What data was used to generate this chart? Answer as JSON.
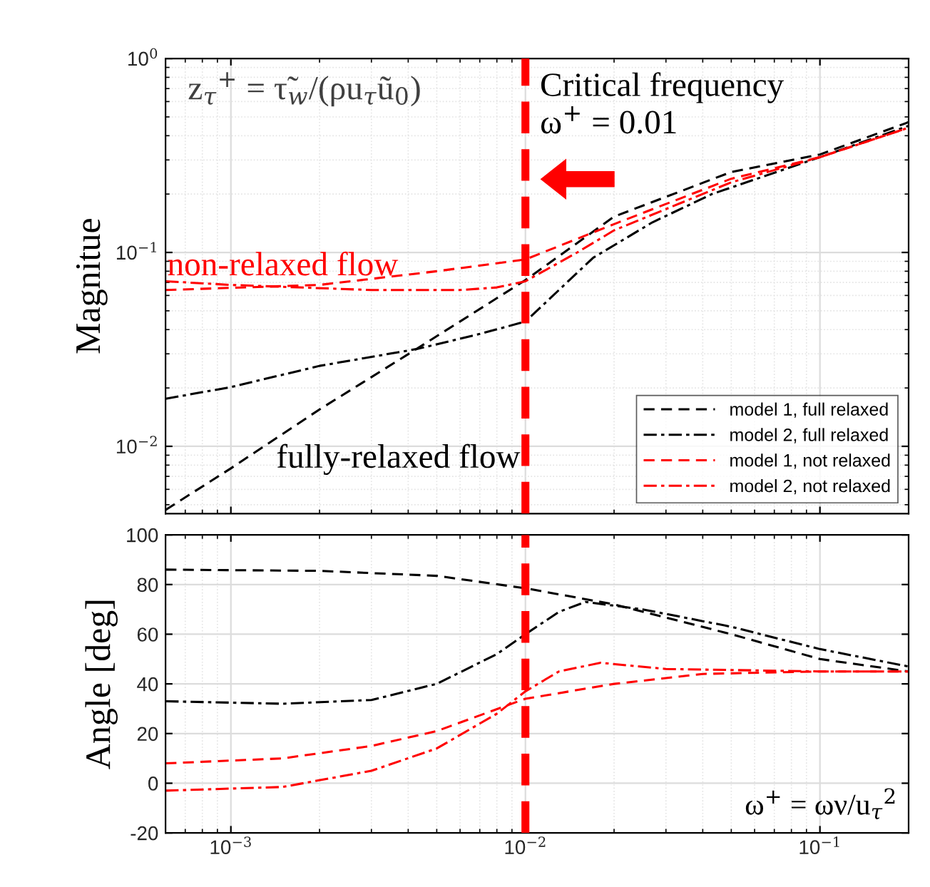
{
  "chart_data": [
    {
      "type": "line",
      "ylabel": "Magnitue",
      "log": "xy",
      "grid": true,
      "legend": "bottom right",
      "tick_labels": "y",
      "xlim": [
        0.0006,
        0.2
      ],
      "ylim": [
        0.0045,
        1
      ],
      "yticks": [
        {
          "value": 0.01,
          "label": "10$^{−2}$"
        },
        {
          "value": 0.1,
          "label": "10$^{−1}$"
        },
        {
          "value": 1,
          "label": "10$^{0}$"
        }
      ],
      "annotations": [
        "z$_{τ}$$^{+}$ = τ̃$_{w}$/(ρu$_{τ}$ũ$_{0}$)",
        {
          "text": "non-relaxed flow",
          "x": 0.0015,
          "y": 0.07
        },
        "fully-relaxed flow"
      ],
      "ref_lines": [
        {
          "axis": "x",
          "value": 0.01,
          "label": "Critical frequency\nω$^{+}$ = 0.01",
          "color": "#ff0000",
          "line_style": "dashed"
        }
      ],
      "series": [
        {
          "name": "model 1, full relaxed",
          "color": "#000000",
          "line_style": "dashed",
          "x": [
            0.0006,
            0.001,
            0.002,
            0.0043,
            0.01,
            0.02,
            0.05,
            0.1,
            0.2
          ],
          "values": [
            0.0047,
            0.0077,
            0.0155,
            0.032,
            0.072,
            0.153,
            0.26,
            0.32,
            0.47
          ]
        },
        {
          "name": "model 2, full relaxed",
          "color": "#000000",
          "line_style": "dashdot",
          "x": [
            0.0006,
            0.001,
            0.002,
            0.0043,
            0.007,
            0.01,
            0.017,
            0.027,
            0.043,
            0.1,
            0.2
          ],
          "values": [
            0.0176,
            0.0202,
            0.026,
            0.0318,
            0.038,
            0.044,
            0.094,
            0.143,
            0.2,
            0.31,
            0.45
          ]
        },
        {
          "name": "model 1, not relaxed",
          "color": "#ff0000",
          "line_style": "dashed",
          "x": [
            0.0006,
            0.002,
            0.005,
            0.01,
            0.02,
            0.05,
            0.1,
            0.2
          ],
          "values": [
            0.064,
            0.068,
            0.08,
            0.092,
            0.14,
            0.24,
            0.31,
            0.44
          ]
        },
        {
          "name": "model 2, not relaxed",
          "color": "#ff0000",
          "line_style": "dashdot",
          "x": [
            0.0006,
            0.001,
            0.003,
            0.006,
            0.008,
            0.01,
            0.015,
            0.02,
            0.05,
            0.1,
            0.2
          ],
          "values": [
            0.071,
            0.068,
            0.064,
            0.064,
            0.066,
            0.071,
            0.1,
            0.13,
            0.23,
            0.31,
            0.44
          ]
        }
      ]
    },
    {
      "type": "line",
      "ylabel": "Angle [deg]",
      "xlabel": "ω$^{+}$ = ων/u$_{τ}$$^{2}$",
      "log": "x",
      "grid": true,
      "xlim": [
        0.0006,
        0.2
      ],
      "ylim": [
        -20,
        100
      ],
      "xticks": [
        {
          "value": 0.001,
          "label": "10$^{−3}$"
        },
        {
          "value": 0.01,
          "label": "10$^{−2}$"
        },
        {
          "value": 0.1,
          "label": "10$^{−1}$"
        }
      ],
      "yticks": [
        -20,
        0,
        20,
        40,
        60,
        80,
        100
      ],
      "ref_lines": [
        {
          "axis": "x",
          "value": 0.01,
          "color": "#ff0000",
          "line_style": "dashed"
        }
      ],
      "series": [
        {
          "color": "#000000",
          "line_style": "dashed",
          "x": [
            0.0006,
            0.002,
            0.005,
            0.01,
            0.02,
            0.05,
            0.1,
            0.2
          ],
          "values": [
            86,
            85.5,
            83.5,
            78.5,
            72,
            60,
            50,
            45
          ]
        },
        {
          "color": "#000000",
          "line_style": "dashdot",
          "x": [
            0.0006,
            0.0015,
            0.003,
            0.005,
            0.008,
            0.01,
            0.013,
            0.016,
            0.025,
            0.05,
            0.1,
            0.2
          ],
          "values": [
            33,
            32,
            33.5,
            40,
            52,
            60,
            69,
            73,
            70,
            63,
            54,
            47
          ]
        },
        {
          "color": "#ff0000",
          "line_style": "dashed",
          "x": [
            0.0006,
            0.0015,
            0.003,
            0.005,
            0.01,
            0.02,
            0.04,
            0.1,
            0.2
          ],
          "values": [
            8,
            10,
            15,
            21,
            34,
            40,
            44,
            45,
            45
          ]
        },
        {
          "color": "#ff0000",
          "line_style": "dashdot",
          "x": [
            0.0006,
            0.0015,
            0.003,
            0.005,
            0.008,
            0.01,
            0.013,
            0.018,
            0.03,
            0.1,
            0.2
          ],
          "values": [
            -3,
            -1.5,
            5,
            14,
            28,
            37,
            45,
            48.5,
            46,
            45,
            45
          ]
        }
      ]
    }
  ]
}
